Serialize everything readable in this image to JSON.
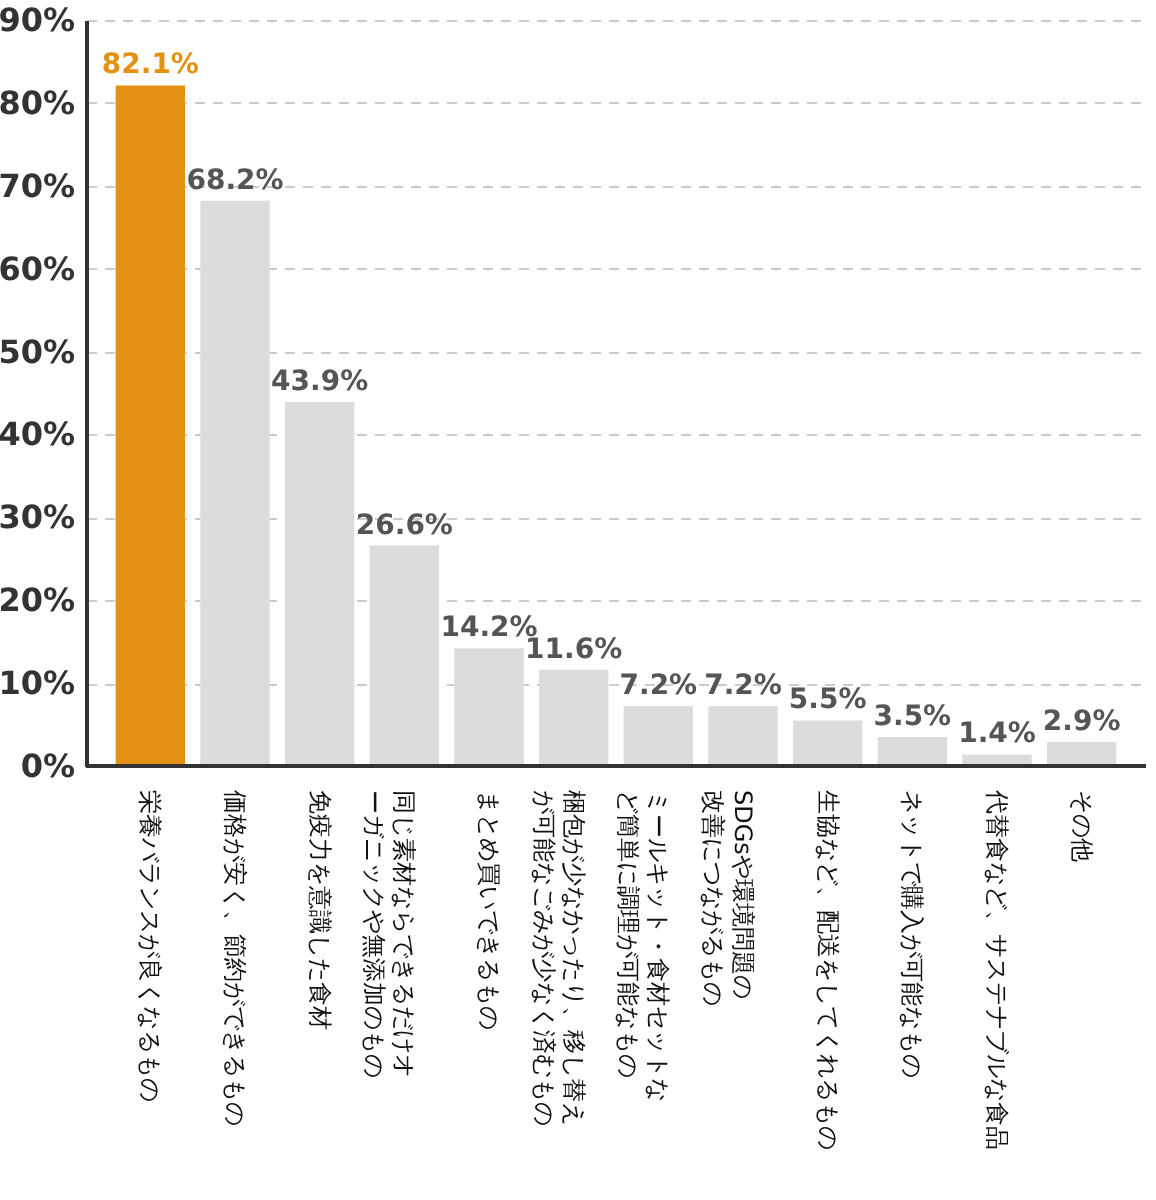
{
  "chart_data": {
    "type": "bar",
    "categories": [
      "栄養バランスが良くなるもの",
      "価格が安く、節約ができるもの",
      "免疫力を意識した食材",
      "同じ素材ならできるだけオーガニックや無添加のもの",
      "まとめ買いできるもの",
      "梱包が少なかったり、移し替えが可能なごみが少なく済むもの",
      "ミールキット・食材セットなど簡単に調理が可能なもの",
      "SDGsや環境問題の改善につながるもの",
      "生協など、配送をしてくれるもの",
      "ネットで購入が可能なもの",
      "代替食など、サステナブルな食品",
      "その他"
    ],
    "values": [
      82.1,
      68.2,
      43.9,
      26.6,
      14.2,
      11.6,
      7.2,
      7.2,
      5.5,
      3.5,
      1.4,
      2.9
    ],
    "colors": [
      "#e39213",
      "#dcdcdc",
      "#dcdcdc",
      "#dcdcdc",
      "#dcdcdc",
      "#dcdcdc",
      "#dcdcdc",
      "#dcdcdc",
      "#dcdcdc",
      "#dcdcdc",
      "#dcdcdc",
      "#dcdcdc"
    ],
    "value_labels": [
      "82.1%",
      "68.2%",
      "43.9%",
      "26.6%",
      "14.2%",
      "11.6%",
      "7.2%",
      "7.2%",
      "5.5%",
      "3.5%",
      "1.4%",
      "2.9%"
    ],
    "ylim": [
      0,
      90
    ],
    "yticks": [
      {
        "value": 0,
        "label": "0%"
      },
      {
        "value": 10,
        "label": "10%"
      },
      {
        "value": 20,
        "label": "20%"
      },
      {
        "value": 30,
        "label": "30%"
      },
      {
        "value": 40,
        "label": "40%"
      },
      {
        "value": 50,
        "label": "50%"
      },
      {
        "value": 60,
        "label": "60%"
      },
      {
        "value": 70,
        "label": "70%"
      },
      {
        "value": 80,
        "label": "80%"
      },
      {
        "value": 90,
        "label": "90%"
      }
    ],
    "grid": "y",
    "legend": false
  }
}
